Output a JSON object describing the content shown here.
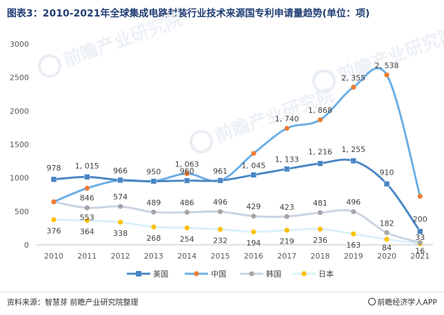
{
  "page": {
    "source": "资料来源：智慧芽 前瞻产业研究院整理",
    "app_credit": "前瞻经济学人APP",
    "watermark": "前瞻产业研究院"
  },
  "chart_data": {
    "type": "line",
    "title": "图表3：2010-2021年全球集成电路封装行业技术来源国专利申请量趋势(单位：项)",
    "x": [
      "2010",
      "2011",
      "2012",
      "2013",
      "2014",
      "2015",
      "2016",
      "2017",
      "2018",
      "2019",
      "2020",
      "2021"
    ],
    "ylim": [
      0,
      3000
    ],
    "yticks": [
      0,
      500,
      1000,
      1500,
      2000,
      2500,
      3000
    ],
    "grid": false,
    "legend": "bottom",
    "series": [
      {
        "name": "美国",
        "color": "#4a86c5",
        "marker": "square",
        "values": [
          978,
          1015,
          966,
          950,
          960,
          961,
          1045,
          1133,
          1216,
          1255,
          910,
          200
        ],
        "labels": [
          "978",
          "1, 015",
          "966",
          "950",
          "960",
          "961",
          "1, 045",
          "1, 133",
          "1, 216",
          "1, 255",
          "910",
          "200"
        ]
      },
      {
        "name": "中国",
        "color": "#6aaee5",
        "marker_color": "#ed7d31",
        "marker": "circle",
        "values": [
          643,
          846,
          966,
          950,
          1063,
          961,
          1365,
          1740,
          1868,
          2355,
          2538,
          725
        ],
        "labels": [
          "",
          "846",
          "",
          "",
          "1, 063",
          "",
          "",
          "1, 740",
          "1, 868",
          "2, 355",
          "2, 538",
          ""
        ]
      },
      {
        "name": "韩国",
        "color": "#c9d3e3",
        "marker_color": "#a5a5a5",
        "marker": "circle",
        "values": [
          643,
          553,
          574,
          489,
          486,
          496,
          429,
          423,
          481,
          496,
          182,
          33
        ],
        "labels": [
          "",
          "553",
          "574",
          "489",
          "486",
          "496",
          "429",
          "423",
          "481",
          "496",
          "182",
          "33"
        ]
      },
      {
        "name": "日本",
        "color": "#d9f1fb",
        "marker_color": "#ffc000",
        "marker": "circle",
        "values": [
          376,
          364,
          338,
          268,
          254,
          232,
          194,
          219,
          236,
          163,
          84,
          16
        ],
        "labels": [
          "376",
          "364",
          "338",
          "268",
          "254",
          "232",
          "194",
          "219",
          "236",
          "163",
          "84",
          "16"
        ]
      }
    ]
  }
}
